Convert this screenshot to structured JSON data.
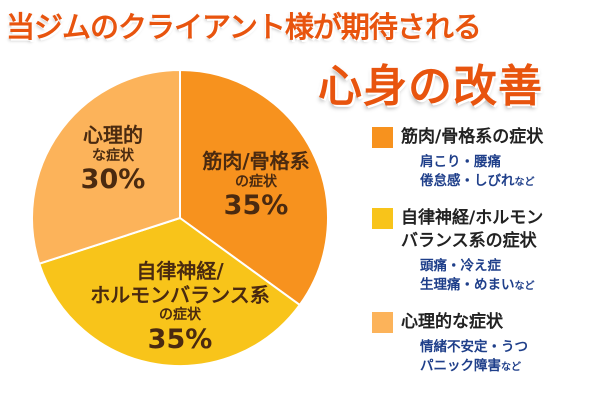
{
  "title": {
    "line1": "当ジムのクライアント様が期待される",
    "line2": "心身の改善"
  },
  "colors": {
    "title": "#e8540e",
    "slice_muscle": "#f7921e",
    "slice_autonomic": "#f8c41a",
    "slice_psych": "#fcb35a",
    "legend_detail": "#1f3f8a"
  },
  "slice_labels": {
    "muscle": {
      "line1": "筋肉/骨格系",
      "line2": "の症状",
      "pct": "35%"
    },
    "autonomic": {
      "line1": "自律神経/",
      "line2": "ホルモンバランス系",
      "line3": "の症状",
      "pct": "35%"
    },
    "psych": {
      "line1": "心理的",
      "line2": "な症状",
      "pct": "30%"
    }
  },
  "legend": [
    {
      "label": "筋肉/骨格系の症状",
      "detail1": "肩こり・腰痛",
      "detail2": "倦怠感・しびれ",
      "suffix": "など"
    },
    {
      "label": "自律神経/ホルモン",
      "label2": "バランス系の症状",
      "detail1": "頭痛・冷え症",
      "detail2": "生理痛・めまい",
      "suffix": "など"
    },
    {
      "label": "心理的な症状",
      "detail1": "情緒不安定・うつ",
      "detail2": "パニック障害",
      "suffix": "など"
    }
  ],
  "chart_data": {
    "type": "pie",
    "title": "当ジムのクライアント様が期待される 心身の改善",
    "categories": [
      "筋肉/骨格系の症状",
      "自律神経/ホルモンバランス系の症状",
      "心理的な症状"
    ],
    "values": [
      35,
      35,
      30
    ],
    "colors": [
      "#f7921e",
      "#f8c41a",
      "#fcb35a"
    ],
    "legend": "right"
  }
}
